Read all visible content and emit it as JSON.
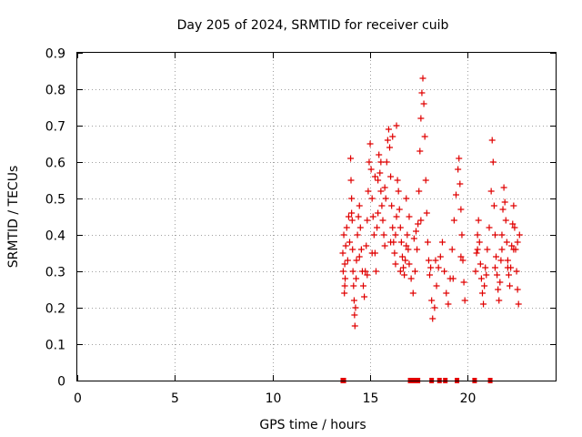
{
  "chart_data": {
    "type": "scatter",
    "title": "Day 205 of 2024, SRMTID for receiver cuib",
    "xlabel": "GPS time / hours",
    "ylabel": "SRMTID / TECUs",
    "xlim": [
      0,
      24.5
    ],
    "ylim": [
      0,
      0.9
    ],
    "xticks": [
      0,
      5,
      10,
      15,
      20
    ],
    "yticks": [
      0,
      0.1,
      0.2,
      0.3,
      0.4,
      0.5,
      0.6,
      0.7,
      0.8,
      0.9
    ],
    "xtick_labels": [
      "0",
      "5",
      "10",
      "15",
      "20"
    ],
    "ytick_labels": [
      "0",
      "0.1",
      "0.2",
      "0.3",
      "0.4",
      "0.5",
      "0.6",
      "0.7",
      "0.8",
      "0.9"
    ],
    "grid": true,
    "marker": "+",
    "color": "#e00000",
    "baseline_markers_x": [
      13.6,
      13.65,
      17.05,
      17.15,
      17.25,
      17.35,
      17.45,
      18.15,
      18.55,
      18.85,
      19.45,
      20.35,
      21.15
    ],
    "series": [
      {
        "name": "SRMTID",
        "points": [
          [
            13.6,
            0.35
          ],
          [
            13.62,
            0.3
          ],
          [
            13.65,
            0.4
          ],
          [
            13.68,
            0.24
          ],
          [
            13.7,
            0.32
          ],
          [
            13.72,
            0.28
          ],
          [
            13.75,
            0.37
          ],
          [
            13.8,
            0.42
          ],
          [
            13.85,
            0.33
          ],
          [
            13.9,
            0.45
          ],
          [
            13.95,
            0.38
          ],
          [
            14.0,
            0.61
          ],
          [
            14.02,
            0.55
          ],
          [
            14.05,
            0.5
          ],
          [
            14.08,
            0.44
          ],
          [
            14.1,
            0.36
          ],
          [
            14.12,
            0.3
          ],
          [
            14.15,
            0.26
          ],
          [
            14.18,
            0.22
          ],
          [
            14.2,
            0.18
          ],
          [
            14.22,
            0.15
          ],
          [
            14.25,
            0.2
          ],
          [
            14.28,
            0.28
          ],
          [
            14.3,
            0.33
          ],
          [
            14.35,
            0.4
          ],
          [
            14.4,
            0.45
          ],
          [
            14.45,
            0.48
          ],
          [
            14.5,
            0.42
          ],
          [
            14.55,
            0.36
          ],
          [
            14.6,
            0.3
          ],
          [
            14.65,
            0.26
          ],
          [
            14.7,
            0.23
          ],
          [
            14.75,
            0.3
          ],
          [
            14.8,
            0.37
          ],
          [
            14.85,
            0.44
          ],
          [
            14.9,
            0.52
          ],
          [
            14.95,
            0.6
          ],
          [
            15.0,
            0.65
          ],
          [
            15.05,
            0.58
          ],
          [
            15.1,
            0.5
          ],
          [
            15.15,
            0.45
          ],
          [
            15.2,
            0.4
          ],
          [
            15.25,
            0.35
          ],
          [
            15.3,
            0.3
          ],
          [
            15.35,
            0.42
          ],
          [
            15.4,
            0.55
          ],
          [
            15.45,
            0.62
          ],
          [
            15.5,
            0.57
          ],
          [
            15.55,
            0.52
          ],
          [
            15.6,
            0.48
          ],
          [
            15.65,
            0.44
          ],
          [
            15.7,
            0.4
          ],
          [
            15.75,
            0.37
          ],
          [
            15.8,
            0.5
          ],
          [
            15.85,
            0.6
          ],
          [
            15.9,
            0.66
          ],
          [
            15.95,
            0.69
          ],
          [
            16.0,
            0.64
          ],
          [
            16.05,
            0.56
          ],
          [
            16.1,
            0.48
          ],
          [
            16.15,
            0.42
          ],
          [
            16.2,
            0.38
          ],
          [
            16.25,
            0.35
          ],
          [
            16.3,
            0.32
          ],
          [
            16.35,
            0.45
          ],
          [
            16.4,
            0.55
          ],
          [
            16.45,
            0.52
          ],
          [
            16.5,
            0.47
          ],
          [
            16.55,
            0.42
          ],
          [
            16.6,
            0.38
          ],
          [
            16.65,
            0.34
          ],
          [
            16.7,
            0.31
          ],
          [
            16.75,
            0.29
          ],
          [
            16.8,
            0.33
          ],
          [
            16.85,
            0.37
          ],
          [
            16.9,
            0.4
          ],
          [
            16.95,
            0.36
          ],
          [
            17.0,
            0.32
          ],
          [
            17.1,
            0.28
          ],
          [
            17.2,
            0.24
          ],
          [
            17.3,
            0.3
          ],
          [
            17.4,
            0.36
          ],
          [
            17.45,
            0.43
          ],
          [
            17.5,
            0.52
          ],
          [
            17.55,
            0.63
          ],
          [
            17.6,
            0.72
          ],
          [
            17.65,
            0.79
          ],
          [
            17.7,
            0.83
          ],
          [
            17.75,
            0.76
          ],
          [
            17.8,
            0.67
          ],
          [
            17.85,
            0.55
          ],
          [
            17.9,
            0.46
          ],
          [
            17.95,
            0.38
          ],
          [
            18.0,
            0.33
          ],
          [
            18.1,
            0.31
          ],
          [
            18.15,
            0.22
          ],
          [
            18.2,
            0.17
          ],
          [
            18.3,
            0.2
          ],
          [
            18.4,
            0.26
          ],
          [
            18.5,
            0.31
          ],
          [
            18.6,
            0.34
          ],
          [
            18.7,
            0.38
          ],
          [
            18.8,
            0.3
          ],
          [
            18.9,
            0.24
          ],
          [
            19.0,
            0.21
          ],
          [
            19.1,
            0.28
          ],
          [
            19.2,
            0.36
          ],
          [
            19.3,
            0.44
          ],
          [
            19.4,
            0.51
          ],
          [
            19.5,
            0.58
          ],
          [
            19.55,
            0.61
          ],
          [
            19.6,
            0.54
          ],
          [
            19.65,
            0.47
          ],
          [
            19.7,
            0.4
          ],
          [
            19.75,
            0.33
          ],
          [
            19.8,
            0.27
          ],
          [
            19.85,
            0.22
          ],
          [
            20.4,
            0.3
          ],
          [
            20.45,
            0.35
          ],
          [
            20.5,
            0.4
          ],
          [
            20.55,
            0.44
          ],
          [
            20.6,
            0.38
          ],
          [
            20.65,
            0.32
          ],
          [
            20.7,
            0.28
          ],
          [
            20.75,
            0.24
          ],
          [
            20.8,
            0.21
          ],
          [
            20.85,
            0.26
          ],
          [
            20.9,
            0.31
          ],
          [
            21.0,
            0.36
          ],
          [
            21.1,
            0.42
          ],
          [
            21.2,
            0.52
          ],
          [
            21.25,
            0.66
          ],
          [
            21.3,
            0.6
          ],
          [
            21.35,
            0.48
          ],
          [
            21.4,
            0.4
          ],
          [
            21.45,
            0.34
          ],
          [
            21.5,
            0.29
          ],
          [
            21.55,
            0.25
          ],
          [
            21.6,
            0.22
          ],
          [
            21.65,
            0.27
          ],
          [
            21.7,
            0.33
          ],
          [
            21.75,
            0.4
          ],
          [
            21.8,
            0.47
          ],
          [
            21.85,
            0.53
          ],
          [
            21.9,
            0.49
          ],
          [
            21.95,
            0.44
          ],
          [
            22.0,
            0.38
          ],
          [
            22.05,
            0.33
          ],
          [
            22.1,
            0.29
          ],
          [
            22.15,
            0.26
          ],
          [
            22.2,
            0.31
          ],
          [
            22.25,
            0.37
          ],
          [
            22.3,
            0.43
          ],
          [
            22.35,
            0.48
          ],
          [
            22.4,
            0.42
          ],
          [
            22.45,
            0.36
          ],
          [
            22.5,
            0.3
          ],
          [
            22.55,
            0.25
          ],
          [
            22.6,
            0.21
          ],
          [
            22.65,
            0.4
          ],
          [
            13.7,
            0.26
          ],
          [
            14.05,
            0.46
          ],
          [
            14.45,
            0.34
          ],
          [
            14.85,
            0.29
          ],
          [
            15.1,
            0.35
          ],
          [
            15.4,
            0.46
          ],
          [
            15.75,
            0.53
          ],
          [
            16.05,
            0.38
          ],
          [
            16.3,
            0.4
          ],
          [
            16.55,
            0.3
          ],
          [
            16.85,
            0.5
          ],
          [
            17.25,
            0.39
          ],
          [
            17.6,
            0.44
          ],
          [
            18.05,
            0.29
          ],
          [
            18.35,
            0.33
          ],
          [
            19.25,
            0.28
          ],
          [
            19.65,
            0.34
          ],
          [
            20.5,
            0.36
          ],
          [
            20.95,
            0.29
          ],
          [
            21.4,
            0.31
          ],
          [
            21.75,
            0.36
          ],
          [
            22.05,
            0.31
          ],
          [
            22.35,
            0.36
          ],
          [
            22.55,
            0.38
          ],
          [
            15.25,
            0.56
          ],
          [
            15.55,
            0.6
          ],
          [
            16.15,
            0.67
          ],
          [
            16.35,
            0.7
          ],
          [
            17.0,
            0.45
          ],
          [
            17.35,
            0.41
          ]
        ]
      }
    ]
  }
}
